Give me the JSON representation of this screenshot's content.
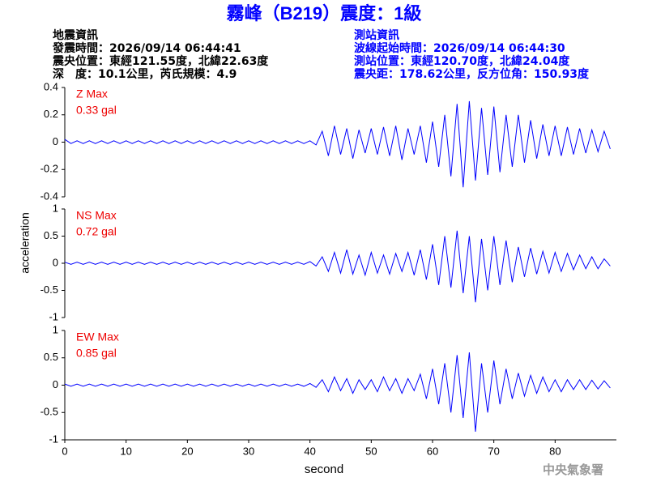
{
  "header": {
    "title": "霧峰（B219）震度：1級",
    "quake_info": [
      "地震資訊",
      "發震時間：2026/09/14 06:44:41",
      "震央位置：東經121.55度，北緯22.63度",
      "深　度：10.1公里，芮氏規模：4.9"
    ],
    "station_info": [
      "測站資訊",
      "波線起始時間：2026/09/14 06:44:30",
      "測站位置：東經120.70度，北緯24.04度",
      "震央距：178.62公里，反方位角：150.93度"
    ]
  },
  "footer": "中央氣象署",
  "chart_data": [
    {
      "type": "line",
      "annotation": [
        "Z Max",
        "0.33 gal"
      ],
      "color": "#0000ff",
      "x": [
        0,
        1,
        2,
        3,
        4,
        5,
        6,
        7,
        8,
        9,
        10,
        11,
        12,
        13,
        14,
        15,
        16,
        17,
        18,
        19,
        20,
        21,
        22,
        23,
        24,
        25,
        26,
        27,
        28,
        29,
        30,
        31,
        32,
        33,
        34,
        35,
        36,
        37,
        38,
        39,
        40,
        41,
        42,
        43,
        44,
        45,
        46,
        47,
        48,
        49,
        50,
        51,
        52,
        53,
        54,
        55,
        56,
        57,
        58,
        59,
        60,
        61,
        62,
        63,
        64,
        65,
        66,
        67,
        68,
        69,
        70,
        71,
        72,
        73,
        74,
        75,
        76,
        77,
        78,
        79,
        80,
        81,
        82,
        83,
        84,
        85,
        86,
        87,
        88,
        89
      ],
      "values": [
        0.02,
        -0.01,
        0.01,
        -0.01,
        0.01,
        -0.01,
        0.01,
        -0.01,
        0.01,
        -0.01,
        0.01,
        -0.01,
        0.01,
        -0.01,
        0.01,
        -0.01,
        0.01,
        -0.01,
        0.01,
        -0.01,
        0.01,
        -0.01,
        0.01,
        -0.01,
        0.01,
        -0.01,
        0.01,
        -0.01,
        0.01,
        -0.01,
        0.01,
        -0.01,
        0.01,
        -0.01,
        0.01,
        -0.01,
        0.01,
        -0.01,
        0.01,
        -0.01,
        0.01,
        -0.02,
        0.08,
        -0.1,
        0.12,
        -0.09,
        0.1,
        -0.12,
        0.09,
        -0.08,
        0.1,
        -0.09,
        0.11,
        -0.1,
        0.12,
        -0.13,
        0.1,
        -0.09,
        0.12,
        -0.15,
        0.15,
        -0.18,
        0.2,
        -0.25,
        0.28,
        -0.33,
        0.3,
        -0.28,
        0.25,
        -0.24,
        0.26,
        -0.22,
        0.2,
        -0.18,
        0.2,
        -0.15,
        0.16,
        -0.12,
        0.13,
        -0.1,
        0.12,
        -0.1,
        0.11,
        -0.09,
        0.1,
        -0.08,
        0.09,
        -0.07,
        0.08,
        -0.05
      ],
      "xlim": [
        0,
        90
      ],
      "ylim": [
        -0.4,
        0.4
      ],
      "yticks": [
        -0.4,
        -0.2,
        0,
        0.2,
        0.4
      ]
    },
    {
      "type": "line",
      "annotation": [
        "NS Max",
        "0.72 gal"
      ],
      "color": "#0000ff",
      "ylabel": "acceleration",
      "x": [
        0,
        1,
        2,
        3,
        4,
        5,
        6,
        7,
        8,
        9,
        10,
        11,
        12,
        13,
        14,
        15,
        16,
        17,
        18,
        19,
        20,
        21,
        22,
        23,
        24,
        25,
        26,
        27,
        28,
        29,
        30,
        31,
        32,
        33,
        34,
        35,
        36,
        37,
        38,
        39,
        40,
        41,
        42,
        43,
        44,
        45,
        46,
        47,
        48,
        49,
        50,
        51,
        52,
        53,
        54,
        55,
        56,
        57,
        58,
        59,
        60,
        61,
        62,
        63,
        64,
        65,
        66,
        67,
        68,
        69,
        70,
        71,
        72,
        73,
        74,
        75,
        76,
        77,
        78,
        79,
        80,
        81,
        82,
        83,
        84,
        85,
        86,
        87,
        88,
        89
      ],
      "values": [
        0.02,
        -0.02,
        0.02,
        -0.02,
        0.02,
        -0.02,
        0.02,
        -0.02,
        0.02,
        -0.02,
        0.02,
        -0.02,
        0.02,
        -0.02,
        0.02,
        -0.02,
        0.02,
        -0.02,
        0.02,
        -0.02,
        0.02,
        -0.02,
        0.02,
        -0.02,
        0.02,
        -0.02,
        0.02,
        -0.02,
        0.02,
        -0.02,
        0.02,
        -0.02,
        0.02,
        -0.02,
        0.02,
        -0.02,
        0.02,
        -0.02,
        0.02,
        -0.02,
        0.03,
        -0.05,
        0.12,
        -0.15,
        0.2,
        -0.18,
        0.25,
        -0.2,
        0.15,
        -0.22,
        0.2,
        -0.18,
        0.15,
        -0.2,
        0.18,
        -0.15,
        0.2,
        -0.22,
        0.25,
        -0.3,
        0.35,
        -0.4,
        0.5,
        -0.45,
        0.6,
        -0.55,
        0.5,
        -0.72,
        0.45,
        -0.5,
        0.5,
        -0.4,
        0.42,
        -0.35,
        0.3,
        -0.25,
        0.28,
        -0.2,
        0.22,
        -0.18,
        0.2,
        -0.15,
        0.18,
        -0.12,
        0.15,
        -0.1,
        0.12,
        -0.1,
        0.08,
        -0.05
      ],
      "xlim": [
        0,
        90
      ],
      "ylim": [
        -1,
        1
      ],
      "yticks": [
        -1,
        -0.5,
        0,
        0.5,
        1
      ]
    },
    {
      "type": "line",
      "annotation": [
        "EW Max",
        "0.85 gal"
      ],
      "color": "#0000ff",
      "xlabel": "second",
      "x": [
        0,
        1,
        2,
        3,
        4,
        5,
        6,
        7,
        8,
        9,
        10,
        11,
        12,
        13,
        14,
        15,
        16,
        17,
        18,
        19,
        20,
        21,
        22,
        23,
        24,
        25,
        26,
        27,
        28,
        29,
        30,
        31,
        32,
        33,
        34,
        35,
        36,
        37,
        38,
        39,
        40,
        41,
        42,
        43,
        44,
        45,
        46,
        47,
        48,
        49,
        50,
        51,
        52,
        53,
        54,
        55,
        56,
        57,
        58,
        59,
        60,
        61,
        62,
        63,
        64,
        65,
        66,
        67,
        68,
        69,
        70,
        71,
        72,
        73,
        74,
        75,
        76,
        77,
        78,
        79,
        80,
        81,
        82,
        83,
        84,
        85,
        86,
        87,
        88,
        89
      ],
      "values": [
        0.02,
        -0.02,
        0.02,
        -0.02,
        0.02,
        -0.02,
        0.02,
        -0.02,
        0.02,
        -0.02,
        0.02,
        -0.02,
        0.02,
        -0.02,
        0.02,
        -0.02,
        0.02,
        -0.02,
        0.02,
        -0.02,
        0.02,
        -0.02,
        0.02,
        -0.02,
        0.02,
        -0.02,
        0.02,
        -0.02,
        0.02,
        -0.02,
        0.02,
        -0.02,
        0.02,
        -0.02,
        0.02,
        -0.02,
        0.02,
        -0.02,
        0.02,
        -0.02,
        0.03,
        -0.04,
        0.1,
        -0.12,
        0.15,
        -0.1,
        0.12,
        -0.15,
        0.1,
        -0.08,
        0.1,
        -0.12,
        0.15,
        -0.1,
        0.12,
        -0.15,
        0.12,
        -0.1,
        0.2,
        -0.25,
        0.3,
        -0.35,
        0.4,
        -0.5,
        0.55,
        -0.6,
        0.6,
        -0.85,
        0.4,
        -0.5,
        0.45,
        -0.35,
        0.3,
        -0.25,
        0.22,
        -0.2,
        0.18,
        -0.15,
        0.15,
        -0.12,
        0.1,
        -0.12,
        0.1,
        -0.08,
        0.1,
        -0.08,
        0.09,
        -0.07,
        0.08,
        -0.05
      ],
      "xlim": [
        0,
        90
      ],
      "ylim": [
        -1,
        1
      ],
      "yticks": [
        -1,
        -0.5,
        0,
        0.5,
        1
      ],
      "xticks": [
        0,
        10,
        20,
        30,
        40,
        50,
        60,
        70,
        80
      ]
    }
  ]
}
